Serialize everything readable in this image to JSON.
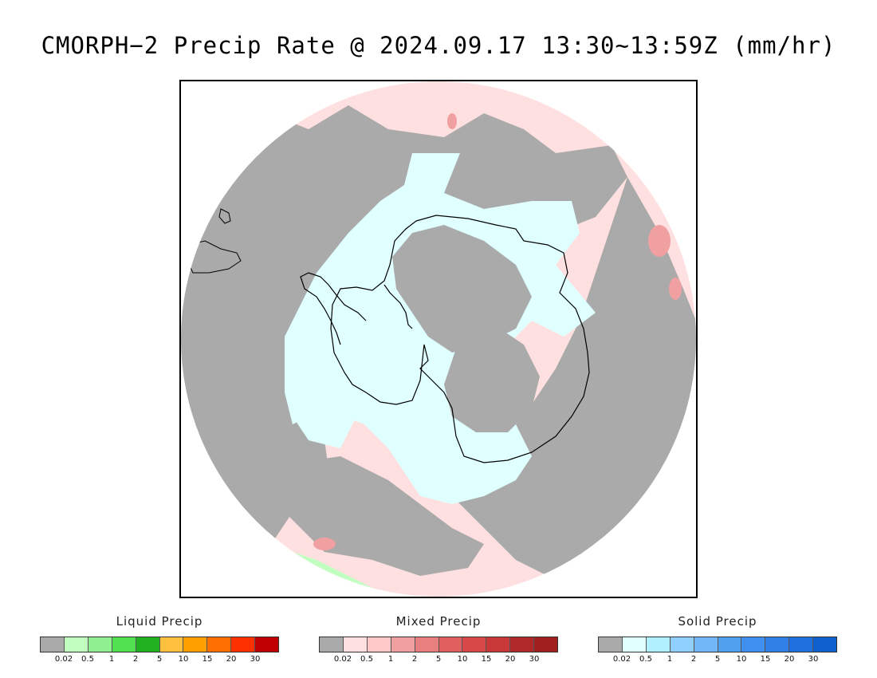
{
  "title": "CMORPH−2 Precip Rate @ 2024.09.17 13:30~13:59Z (mm/hr)",
  "map": {
    "projection": "south-polar-stereographic",
    "colors": {
      "no_precip": "#aaaaaa",
      "mixed_light": "#ffe0e0",
      "solid_light": "#e0ffff",
      "liquid_light": "#c0ffc0",
      "mixed_moderate": "#f0a0a0",
      "coastline": "#000000"
    }
  },
  "legends": [
    {
      "title": "Liquid Precip",
      "swatches": [
        "#aaaaaa",
        "#c0ffc0",
        "#8ff08f",
        "#50e050",
        "#20b020",
        "#ffc040",
        "#ffa000",
        "#ff7000",
        "#ff3000",
        "#c00000"
      ],
      "ticks": [
        "0.02",
        "0.5",
        "1",
        "2",
        "5",
        "10",
        "15",
        "20",
        "30"
      ]
    },
    {
      "title": "Mixed Precip",
      "swatches": [
        "#aaaaaa",
        "#ffe0e0",
        "#ffc8c8",
        "#f0a0a0",
        "#e88080",
        "#e06060",
        "#d84848",
        "#c83838",
        "#b02828",
        "#a02020"
      ],
      "ticks": [
        "0.02",
        "0.5",
        "1",
        "2",
        "5",
        "10",
        "15",
        "20",
        "30"
      ]
    },
    {
      "title": "Solid Precip",
      "swatches": [
        "#aaaaaa",
        "#e0ffff",
        "#b0f0ff",
        "#90d0ff",
        "#70b8f8",
        "#50a0f0",
        "#4090f0",
        "#3080e8",
        "#2070e0",
        "#1060d0"
      ],
      "ticks": [
        "0.02",
        "0.5",
        "1",
        "2",
        "5",
        "10",
        "15",
        "20",
        "30"
      ]
    }
  ]
}
